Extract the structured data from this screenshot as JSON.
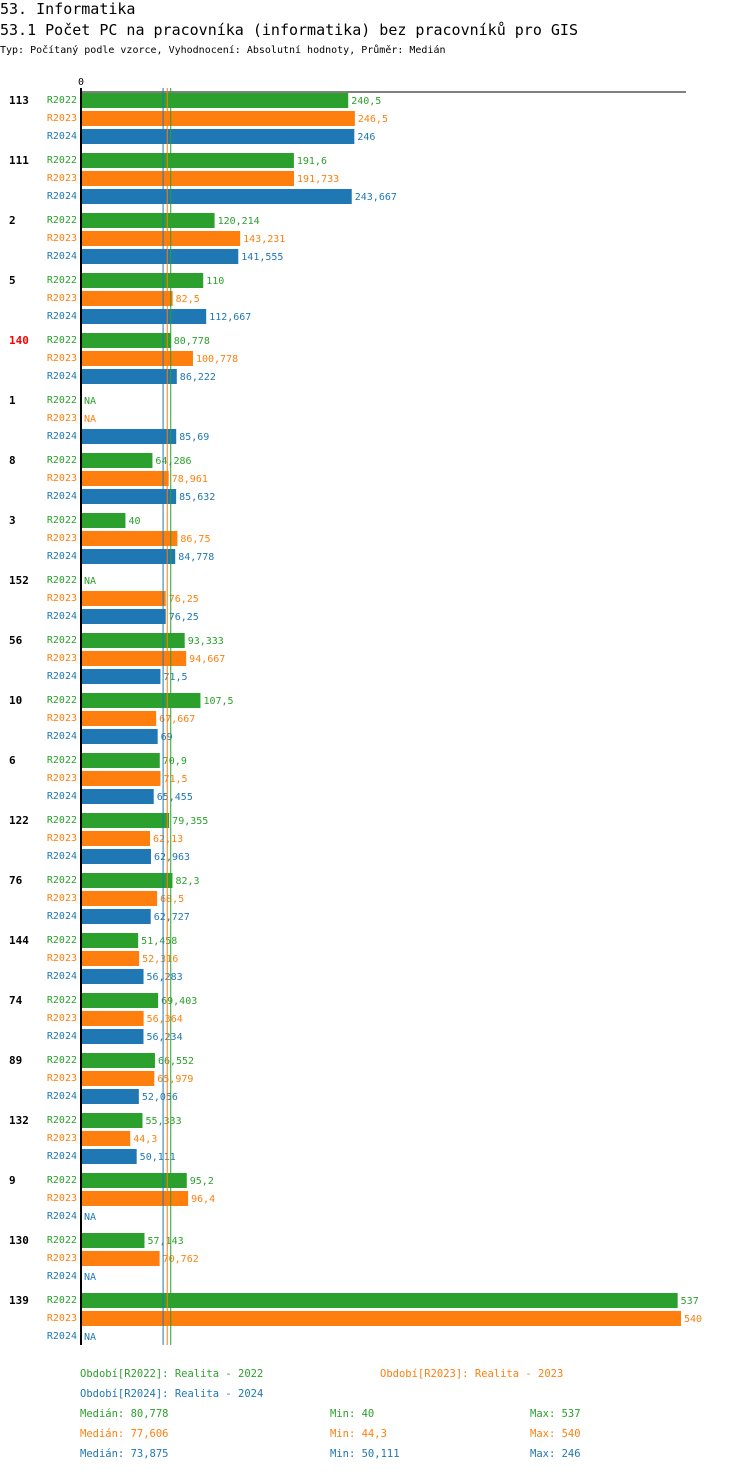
{
  "header": {
    "title": "53. Informatika",
    "subtitle": "53.1 Počet PC na pracovníka (informatika) bez pracovníků pro GIS",
    "info": "Typ: Počítaný podle vzorce, Vyhodnocení: Absolutní hodnoty, Průměr: Medián"
  },
  "colors": {
    "R2022": "#2ca02c",
    "R2023": "#ff7f0e",
    "R2024": "#1f77b4",
    "highlight": "#ff0000"
  },
  "chart_data": {
    "type": "bar",
    "orientation": "horizontal",
    "axis_zero_label": "0",
    "xlim": [
      0,
      540
    ],
    "series_names": [
      "R2022",
      "R2023",
      "R2024"
    ],
    "na_label": "NA",
    "groups": [
      {
        "id": "113",
        "highlight": false,
        "values": [
          240.5,
          246.5,
          246
        ],
        "labels": [
          "240,5",
          "246,5",
          "246"
        ]
      },
      {
        "id": "111",
        "highlight": false,
        "values": [
          191.6,
          191.733,
          243.667
        ],
        "labels": [
          "191,6",
          "191,733",
          "243,667"
        ]
      },
      {
        "id": "2",
        "highlight": false,
        "values": [
          120.214,
          143.231,
          141.555
        ],
        "labels": [
          "120,214",
          "143,231",
          "141,555"
        ]
      },
      {
        "id": "5",
        "highlight": false,
        "values": [
          110,
          82.5,
          112.667
        ],
        "labels": [
          "110",
          "82,5",
          "112,667"
        ]
      },
      {
        "id": "140",
        "highlight": true,
        "values": [
          80.778,
          100.778,
          86.222
        ],
        "labels": [
          "80,778",
          "100,778",
          "86,222"
        ]
      },
      {
        "id": "1",
        "highlight": false,
        "values": [
          null,
          null,
          85.69
        ],
        "labels": [
          "NA",
          "NA",
          "85,69"
        ]
      },
      {
        "id": "8",
        "highlight": false,
        "values": [
          64.286,
          78.961,
          85.632
        ],
        "labels": [
          "64,286",
          "78,961",
          "85,632"
        ]
      },
      {
        "id": "3",
        "highlight": false,
        "values": [
          40,
          86.75,
          84.778
        ],
        "labels": [
          "40",
          "86,75",
          "84,778"
        ]
      },
      {
        "id": "152",
        "highlight": false,
        "values": [
          null,
          76.25,
          76.25
        ],
        "labels": [
          "NA",
          "76,25",
          "76,25"
        ]
      },
      {
        "id": "56",
        "highlight": false,
        "values": [
          93.333,
          94.667,
          71.5
        ],
        "labels": [
          "93,333",
          "94,667",
          "71,5"
        ]
      },
      {
        "id": "10",
        "highlight": false,
        "values": [
          107.5,
          67.667,
          69
        ],
        "labels": [
          "107,5",
          "67,667",
          "69"
        ]
      },
      {
        "id": "6",
        "highlight": false,
        "values": [
          70.9,
          71.5,
          65.455
        ],
        "labels": [
          "70,9",
          "71,5",
          "65,455"
        ]
      },
      {
        "id": "122",
        "highlight": false,
        "values": [
          79.355,
          62.13,
          62.963
        ],
        "labels": [
          "79,355",
          "62,13",
          "62,963"
        ]
      },
      {
        "id": "76",
        "highlight": false,
        "values": [
          82.3,
          68.5,
          62.727
        ],
        "labels": [
          "82,3",
          "68,5",
          "62,727"
        ]
      },
      {
        "id": "144",
        "highlight": false,
        "values": [
          51.458,
          52.316,
          56.283
        ],
        "labels": [
          "51,458",
          "52,316",
          "56,283"
        ]
      },
      {
        "id": "74",
        "highlight": false,
        "values": [
          69.403,
          56.364,
          56.234
        ],
        "labels": [
          "69,403",
          "56,364",
          "56,234"
        ]
      },
      {
        "id": "89",
        "highlight": false,
        "values": [
          66.552,
          65.979,
          52.056
        ],
        "labels": [
          "66,552",
          "65,979",
          "52,056"
        ]
      },
      {
        "id": "132",
        "highlight": false,
        "values": [
          55.333,
          44.3,
          50.111
        ],
        "labels": [
          "55,333",
          "44,3",
          "50,111"
        ]
      },
      {
        "id": "9",
        "highlight": false,
        "values": [
          95.2,
          96.4,
          null
        ],
        "labels": [
          "95,2",
          "96,4",
          "NA"
        ]
      },
      {
        "id": "130",
        "highlight": false,
        "values": [
          57.143,
          70.762,
          null
        ],
        "labels": [
          "57,143",
          "70,762",
          "NA"
        ]
      },
      {
        "id": "139",
        "highlight": false,
        "values": [
          537,
          540,
          null
        ],
        "labels": [
          "537",
          "540",
          "NA"
        ]
      }
    ],
    "median_lines": [
      80.778,
      77.606,
      73.875
    ]
  },
  "legend": {
    "periods": [
      "Období[R2022]: Realita - 2022",
      "Období[R2023]: Realita - 2023",
      "Období[R2024]: Realita - 2024"
    ],
    "stats": [
      {
        "median": "Medián: 80,778",
        "min": "Min: 40",
        "max": "Max: 537"
      },
      {
        "median": "Medián: 77,606",
        "min": "Min: 44,3",
        "max": "Max: 540"
      },
      {
        "median": "Medián: 73,875",
        "min": "Min: 50,111",
        "max": "Max: 246"
      }
    ]
  }
}
